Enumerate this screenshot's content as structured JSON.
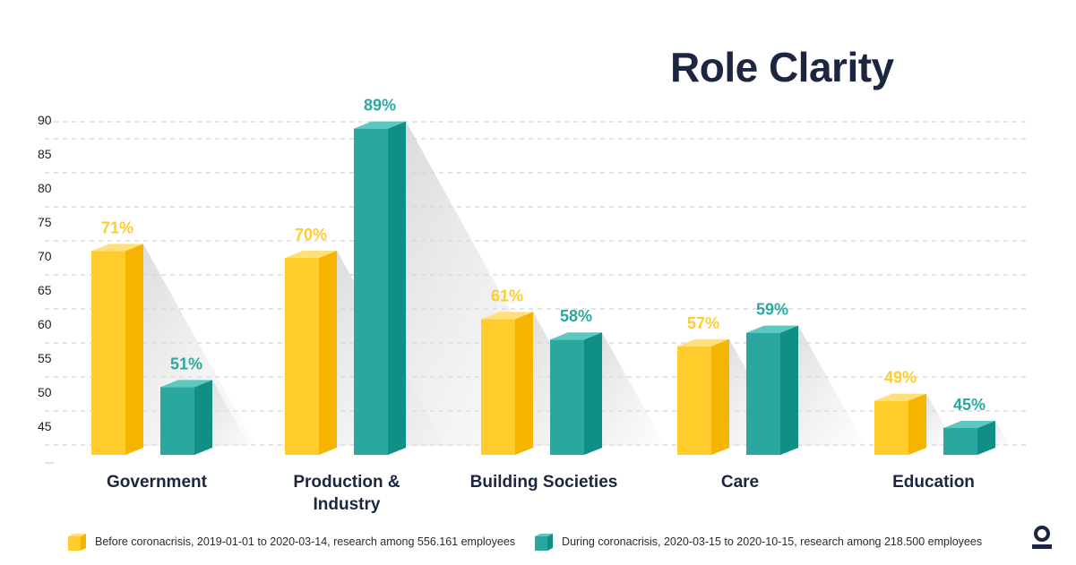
{
  "title": "Role Clarity",
  "chart_data": {
    "type": "bar",
    "title": "Role Clarity",
    "xlabel": "",
    "ylabel": "",
    "ylim": [
      40,
      90
    ],
    "yticks": [
      45,
      50,
      55,
      60,
      65,
      70,
      75,
      80,
      85,
      90
    ],
    "grid": true,
    "legend_position": "bottom",
    "categories": [
      "Government",
      "Production & Industry",
      "Building Societies",
      "Care",
      "Education"
    ],
    "category_lines": [
      [
        "Government"
      ],
      [
        "Production &",
        "Industry"
      ],
      [
        "Building Societies"
      ],
      [
        "Care"
      ],
      [
        "Education"
      ]
    ],
    "series": [
      {
        "name": "Before coronacrisis, 2019-01-01 to 2020-03-14, research among 556.161 employees",
        "values": [
          71,
          70,
          61,
          57,
          49
        ],
        "labels": [
          "71%",
          "70%",
          "61%",
          "57%",
          "49%"
        ],
        "color": "#ffcc2b"
      },
      {
        "name": "During coronacrisis, 2020-03-15 to 2020-10-15, research among 218.500 employees",
        "values": [
          51,
          89,
          58,
          59,
          45
        ],
        "labels": [
          "51%",
          "89%",
          "58%",
          "59%",
          "45%"
        ],
        "color": "#2aa8a0"
      }
    ]
  },
  "colors": {
    "title": "#1c2640",
    "before_front": "#ffcc2b",
    "before_side": "#f5b400",
    "before_top": "#ffdf7a",
    "during_front": "#2aa8a0",
    "during_side": "#0f8f86",
    "during_top": "#5cc8c0",
    "axis_text": "#222222",
    "grid": "#c7c7c7",
    "category_text": "#1c2640"
  },
  "logo": {
    "icon": "brand-logo-icon"
  }
}
